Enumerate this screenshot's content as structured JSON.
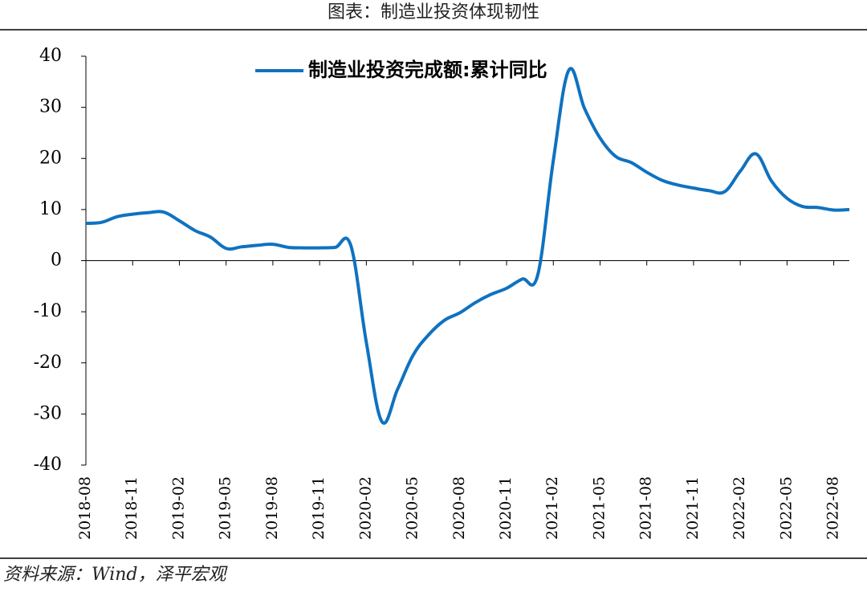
{
  "header": {
    "title": "图表：制造业投资体现韧性"
  },
  "chart_data": {
    "type": "line",
    "categories": [
      "2018-08",
      null,
      null,
      "2018-11",
      null,
      null,
      "2019-02",
      null,
      null,
      "2019-05",
      null,
      null,
      "2019-08",
      null,
      null,
      "2019-11",
      null,
      null,
      "2020-02",
      null,
      null,
      "2020-05",
      null,
      null,
      "2020-08",
      null,
      null,
      "2020-11",
      null,
      null,
      "2021-02",
      null,
      null,
      "2021-05",
      null,
      null,
      "2021-08",
      null,
      null,
      "2021-11",
      null,
      null,
      "2022-02",
      null,
      null,
      "2022-05",
      null,
      null,
      "2022-08",
      null
    ],
    "series": [
      {
        "name": "制造业投资完成额:累计同比",
        "color": "#0f72c0",
        "values": [
          7.3,
          7.5,
          8.6,
          9.1,
          9.4,
          9.5,
          7.8,
          5.9,
          4.6,
          2.4,
          2.7,
          3.0,
          3.2,
          2.6,
          2.5,
          2.5,
          2.6,
          3.0,
          -16,
          -31.5,
          -25.2,
          -18.5,
          -14.5,
          -11.7,
          -10.2,
          -8.2,
          -6.6,
          -5.4,
          -3.6,
          -2.8,
          19.6,
          37.3,
          29.8,
          24.0,
          20.4,
          19.2,
          17.3,
          15.7,
          14.8,
          14.2,
          13.7,
          13.5,
          17.5,
          20.9,
          15.6,
          12.2,
          10.6,
          10.4,
          9.9,
          10.0
        ]
      }
    ],
    "ylim": [
      -40,
      40
    ],
    "yticks": [
      -40,
      -30,
      -20,
      -10,
      0,
      10,
      20,
      30,
      40
    ]
  },
  "footer": {
    "source": "资料来源：Wind，泽平宏观"
  }
}
